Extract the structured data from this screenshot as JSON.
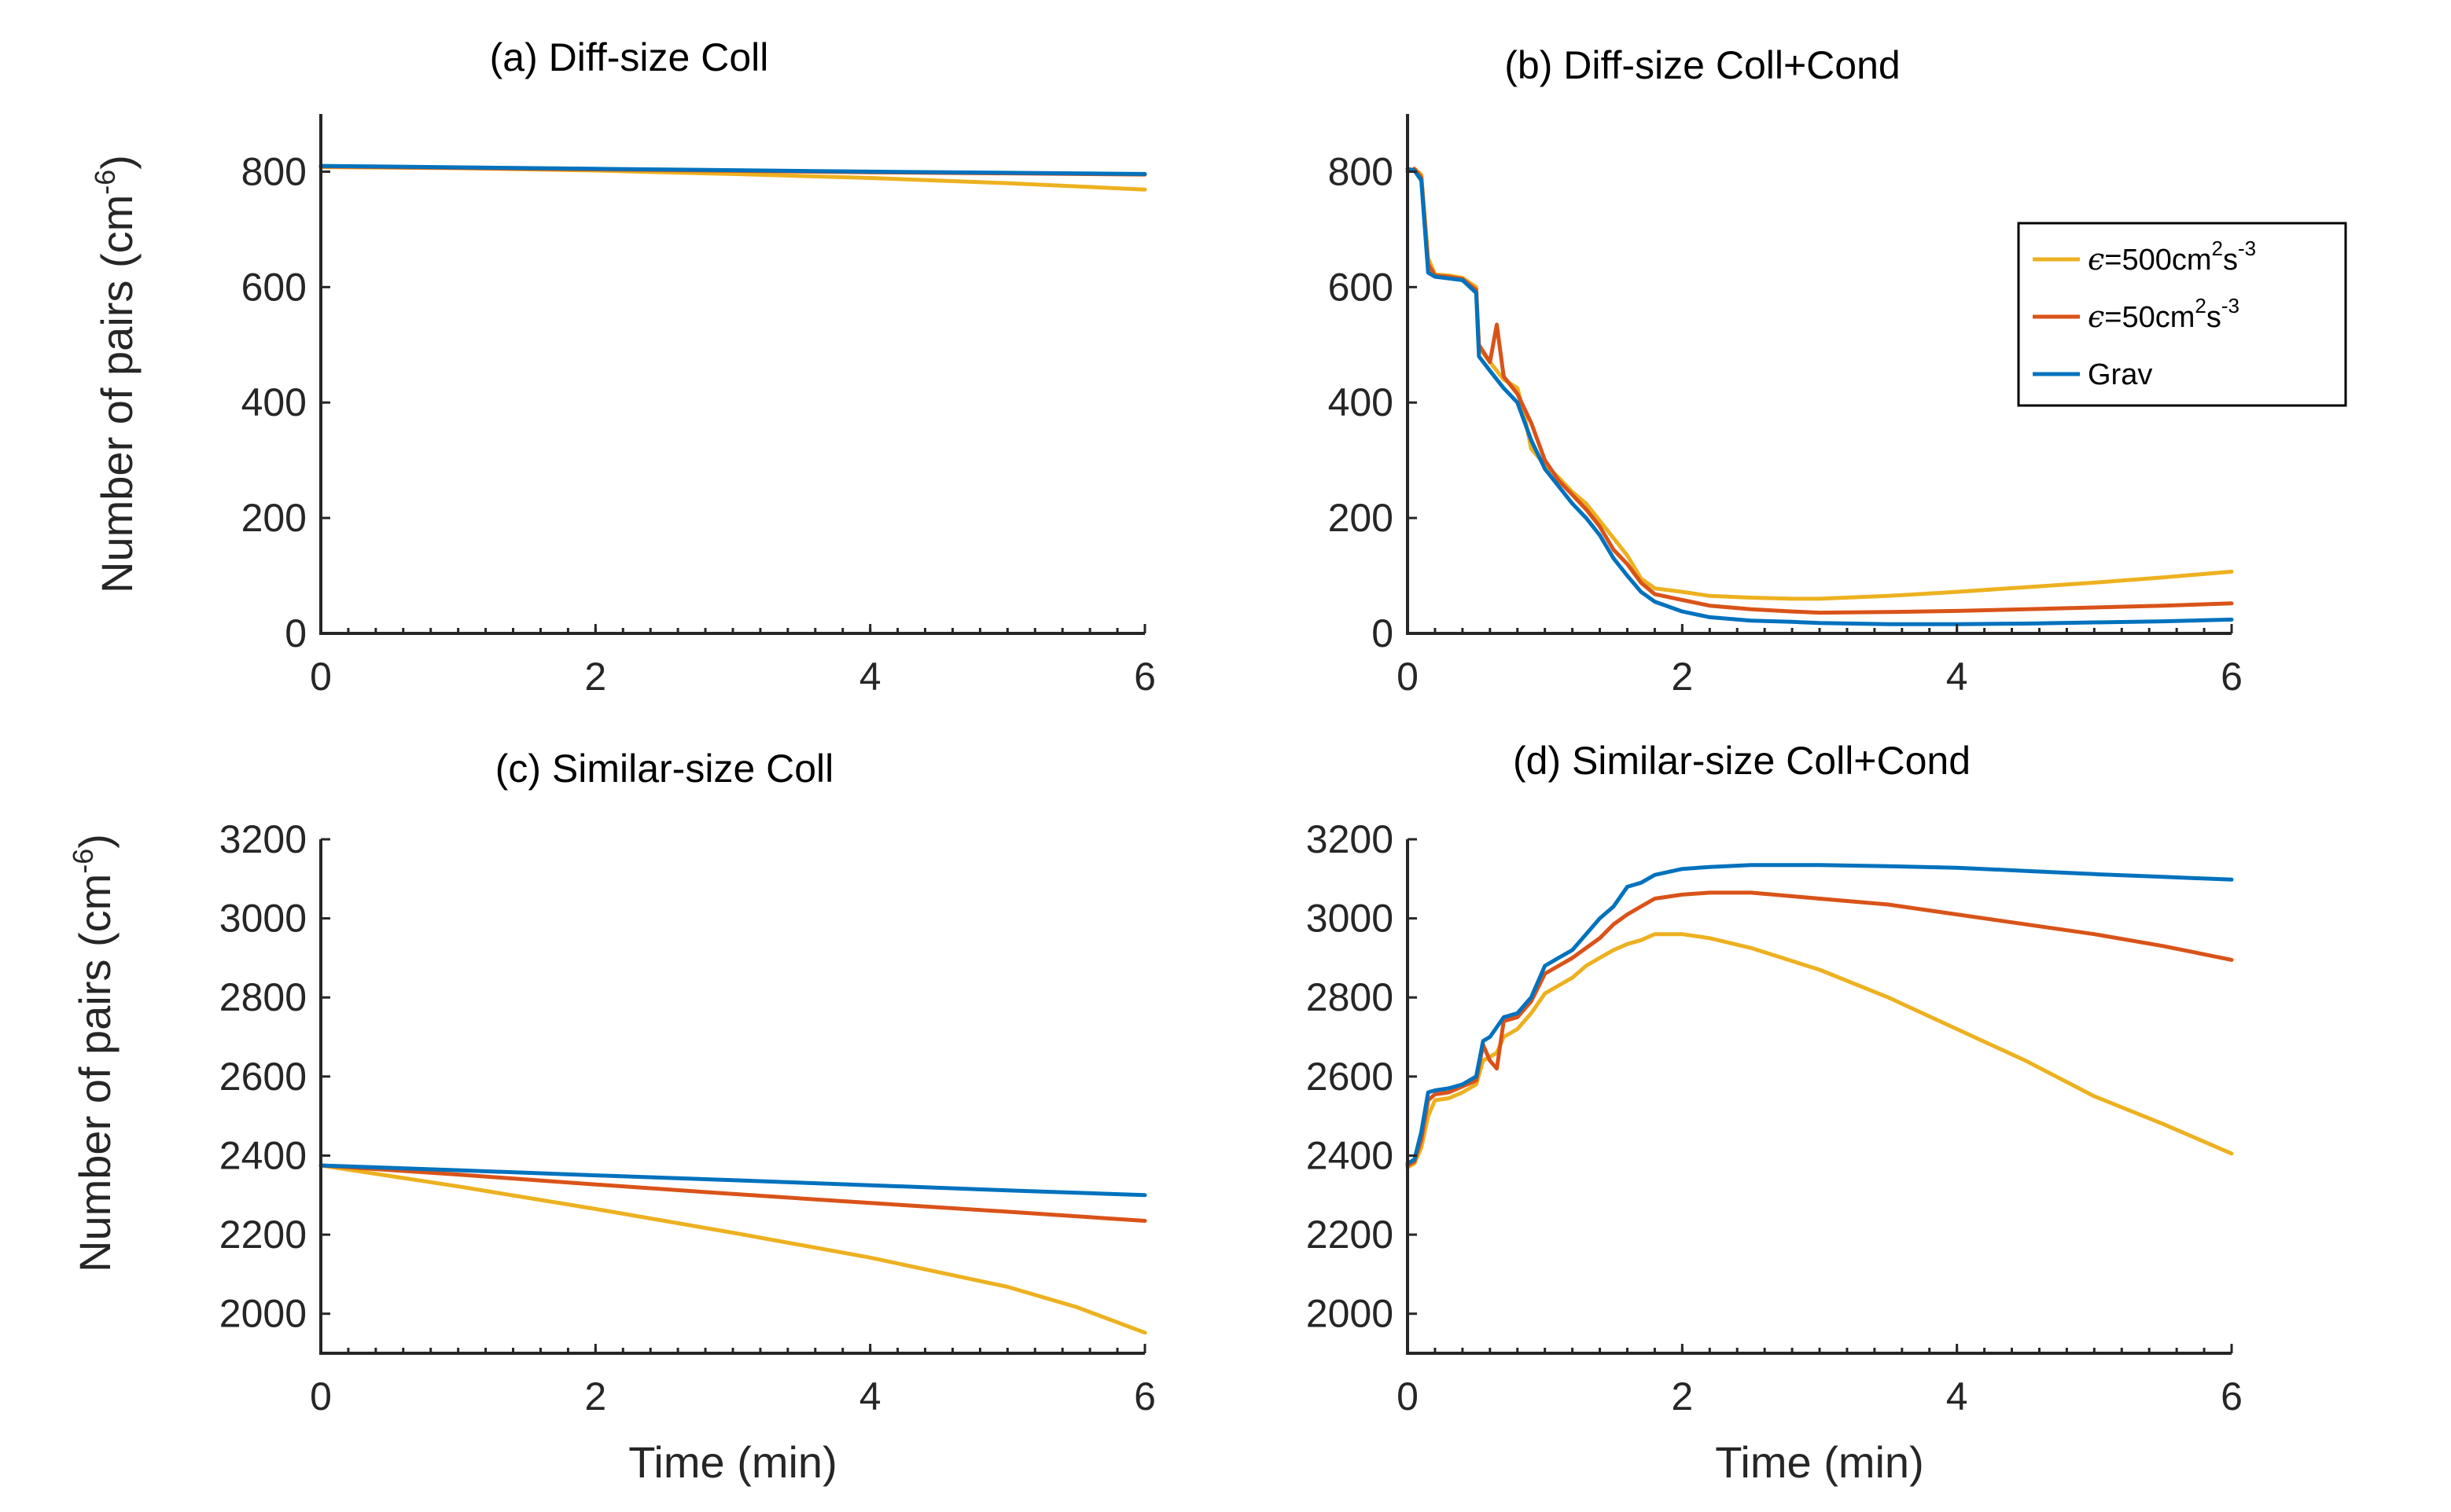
{
  "colors": {
    "s500": "#EDB120",
    "s50": "#D95319",
    "grav": "#0072BD",
    "axis": "#262626"
  },
  "legend": {
    "eps_symbol": "ϵ",
    "entries": [
      {
        "id": "s500",
        "label_main": "=500cm",
        "sup1": "2",
        "mid": "s",
        "sup2": "-3"
      },
      {
        "id": "s50",
        "label_main": "=50cm",
        "sup1": "2",
        "mid": "s",
        "sup2": "-3"
      },
      {
        "id": "grav",
        "label": "Grav"
      }
    ]
  },
  "ylabel": {
    "text": "Number of pairs (cm",
    "sup": "-6",
    "close": ")"
  },
  "chart_data": [
    {
      "type": "line",
      "title": "(a) Diff-size Coll",
      "xlabel": "",
      "xlim": [
        0,
        6
      ],
      "ylim": [
        0,
        900
      ],
      "xticks": [
        0,
        2,
        4,
        6
      ],
      "yticks": [
        0,
        200,
        400,
        600,
        800
      ],
      "series": [
        {
          "id": "s500",
          "x": [
            0,
            1,
            2,
            3,
            4,
            5,
            6
          ],
          "y": [
            808,
            806,
            802,
            796,
            789,
            780,
            769
          ]
        },
        {
          "id": "s50",
          "x": [
            0,
            2,
            4,
            6
          ],
          "y": [
            809,
            804,
            799,
            795
          ]
        },
        {
          "id": "grav",
          "x": [
            0,
            2,
            4,
            6
          ],
          "y": [
            810,
            805,
            800,
            796
          ]
        }
      ]
    },
    {
      "type": "line",
      "title": "(b) Diff-size Coll+Cond",
      "xlabel": "",
      "xlim": [
        0,
        6
      ],
      "ylim": [
        0,
        900
      ],
      "xticks": [
        0,
        2,
        4,
        6
      ],
      "yticks": [
        0,
        200,
        400,
        600,
        800
      ],
      "series": [
        {
          "id": "s500",
          "x": [
            0,
            0.05,
            0.1,
            0.15,
            0.2,
            0.3,
            0.4,
            0.5,
            0.52,
            0.6,
            0.7,
            0.8,
            0.85,
            0.9,
            1.0,
            1.1,
            1.2,
            1.3,
            1.4,
            1.5,
            1.6,
            1.7,
            1.8,
            2.0,
            2.2,
            2.5,
            2.8,
            3.0,
            3.5,
            4.0,
            4.5,
            5.0,
            5.5,
            6.0
          ],
          "y": [
            800,
            805,
            795,
            650,
            622,
            620,
            616,
            600,
            495,
            470,
            440,
            425,
            380,
            320,
            292,
            270,
            245,
            225,
            195,
            165,
            135,
            95,
            78,
            72,
            65,
            62,
            60,
            60,
            65,
            72,
            80,
            88,
            97,
            107
          ]
        },
        {
          "id": "s50",
          "x": [
            0,
            0.05,
            0.1,
            0.15,
            0.2,
            0.3,
            0.4,
            0.5,
            0.52,
            0.6,
            0.65,
            0.7,
            0.8,
            0.9,
            1.0,
            1.1,
            1.2,
            1.3,
            1.4,
            1.5,
            1.6,
            1.7,
            1.8,
            2.0,
            2.2,
            2.5,
            2.8,
            3.0,
            3.5,
            4.0,
            4.5,
            5.0,
            5.5,
            6.0
          ],
          "y": [
            800,
            805,
            790,
            640,
            620,
            618,
            614,
            595,
            500,
            470,
            535,
            445,
            415,
            365,
            300,
            265,
            240,
            215,
            185,
            145,
            120,
            88,
            68,
            58,
            48,
            42,
            38,
            36,
            37,
            39,
            42,
            45,
            48,
            52
          ]
        },
        {
          "id": "grav",
          "x": [
            0,
            0.05,
            0.1,
            0.15,
            0.2,
            0.3,
            0.4,
            0.5,
            0.52,
            0.6,
            0.7,
            0.8,
            0.9,
            1.0,
            1.1,
            1.2,
            1.3,
            1.4,
            1.5,
            1.6,
            1.7,
            1.8,
            2.0,
            2.2,
            2.5,
            2.8,
            3.0,
            3.5,
            4.0,
            4.5,
            5.0,
            5.5,
            6.0
          ],
          "y": [
            805,
            802,
            785,
            625,
            618,
            615,
            612,
            590,
            480,
            455,
            425,
            400,
            335,
            285,
            255,
            225,
            200,
            170,
            130,
            100,
            72,
            55,
            38,
            28,
            22,
            20,
            18,
            16,
            16,
            17,
            19,
            21,
            24
          ]
        }
      ]
    },
    {
      "type": "line",
      "title": "(c) Similar-size Coll",
      "xlabel": "Time (min)",
      "xlim": [
        0,
        6
      ],
      "ylim": [
        1900,
        3200
      ],
      "xticks": [
        0,
        2,
        4,
        6
      ],
      "yticks": [
        2000,
        2200,
        2400,
        2600,
        2800,
        3000,
        3200
      ],
      "series": [
        {
          "id": "s500",
          "x": [
            0,
            1,
            2,
            3,
            4,
            5,
            5.5,
            6
          ],
          "y": [
            2375,
            2322,
            2265,
            2205,
            2142,
            2068,
            2017,
            1952
          ]
        },
        {
          "id": "s50",
          "x": [
            0,
            1,
            2,
            3,
            4,
            5,
            6
          ],
          "y": [
            2375,
            2352,
            2327,
            2303,
            2280,
            2258,
            2235
          ]
        },
        {
          "id": "grav",
          "x": [
            0,
            1,
            2,
            3,
            4,
            5,
            6
          ],
          "y": [
            2375,
            2363,
            2350,
            2338,
            2325,
            2312,
            2300
          ]
        }
      ]
    },
    {
      "type": "line",
      "title": "(d) Similar-size Coll+Cond",
      "xlabel": "Time (min)",
      "xlim": [
        0,
        6
      ],
      "ylim": [
        1900,
        3200
      ],
      "xticks": [
        0,
        2,
        4,
        6
      ],
      "yticks": [
        2000,
        2200,
        2400,
        2600,
        2800,
        3000,
        3200
      ],
      "series": [
        {
          "id": "s500",
          "x": [
            0,
            0.05,
            0.1,
            0.15,
            0.2,
            0.3,
            0.4,
            0.5,
            0.55,
            0.65,
            0.7,
            0.8,
            0.9,
            1.0,
            1.1,
            1.2,
            1.3,
            1.4,
            1.5,
            1.6,
            1.7,
            1.8,
            2.0,
            2.2,
            2.5,
            3.0,
            3.5,
            4.0,
            4.5,
            5.0,
            5.5,
            6.0
          ],
          "y": [
            2370,
            2380,
            2420,
            2500,
            2540,
            2545,
            2560,
            2580,
            2640,
            2660,
            2700,
            2720,
            2760,
            2810,
            2830,
            2850,
            2880,
            2900,
            2920,
            2935,
            2945,
            2960,
            2960,
            2950,
            2925,
            2870,
            2800,
            2720,
            2640,
            2550,
            2480,
            2405
          ]
        },
        {
          "id": "s50",
          "x": [
            0,
            0.05,
            0.1,
            0.15,
            0.2,
            0.3,
            0.4,
            0.5,
            0.55,
            0.6,
            0.65,
            0.7,
            0.8,
            0.9,
            1.0,
            1.1,
            1.2,
            1.3,
            1.4,
            1.5,
            1.6,
            1.7,
            1.8,
            2.0,
            2.2,
            2.5,
            3.0,
            3.5,
            4.0,
            4.5,
            5.0,
            5.5,
            6.0
          ],
          "y": [
            2375,
            2385,
            2440,
            2540,
            2555,
            2560,
            2575,
            2590,
            2680,
            2640,
            2620,
            2740,
            2750,
            2790,
            2860,
            2880,
            2900,
            2925,
            2950,
            2985,
            3010,
            3030,
            3050,
            3060,
            3065,
            3065,
            3050,
            3035,
            3010,
            2985,
            2960,
            2930,
            2895
          ]
        },
        {
          "id": "grav",
          "x": [
            0,
            0.05,
            0.1,
            0.15,
            0.2,
            0.3,
            0.4,
            0.5,
            0.55,
            0.6,
            0.7,
            0.8,
            0.9,
            1.0,
            1.1,
            1.2,
            1.3,
            1.4,
            1.5,
            1.6,
            1.7,
            1.8,
            2.0,
            2.2,
            2.5,
            3.0,
            3.5,
            4.0,
            4.5,
            5.0,
            5.5,
            6.0
          ],
          "y": [
            2380,
            2390,
            2460,
            2560,
            2565,
            2570,
            2580,
            2600,
            2690,
            2700,
            2750,
            2760,
            2800,
            2880,
            2900,
            2920,
            2960,
            3000,
            3030,
            3080,
            3090,
            3110,
            3125,
            3130,
            3135,
            3135,
            3132,
            3128,
            3120,
            3112,
            3105,
            3098
          ]
        }
      ]
    }
  ]
}
